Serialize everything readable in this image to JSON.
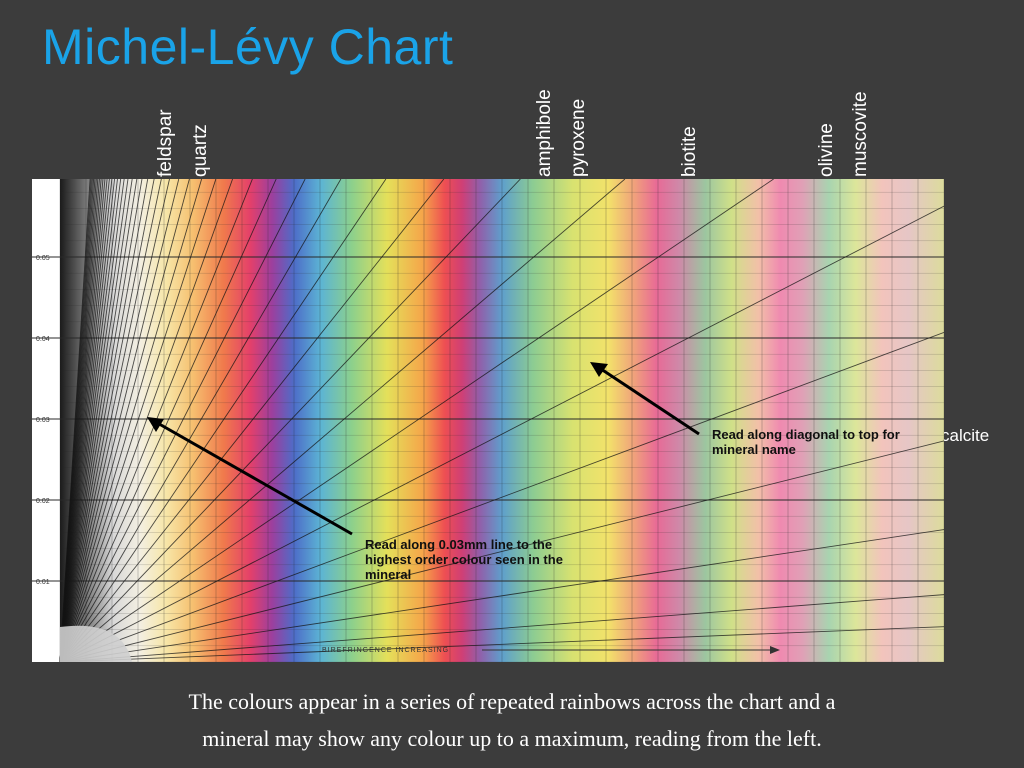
{
  "slide": {
    "title": "Michel-Lévy Chart",
    "caption_line1": "The colours appear in a series of repeated rainbows across the chart and a",
    "caption_line2": "mineral may show any colour up to a maximum, reading from the left."
  },
  "minerals": [
    "feldspar",
    "quartz",
    "amphibole",
    "pyroxene",
    "biotite",
    "olivine",
    "muscovite",
    "calcite"
  ],
  "chart": {
    "y_ticks": [
      "0.05",
      "0.04",
      "0.03",
      "0.02",
      "0.01"
    ],
    "bottom_label": "BIREFRINGENCE   INCREASING",
    "annotation_diagonal": "Read along diagonal to top for mineral name",
    "annotation_thickness": "Read along 0.03mm line to the highest order colour seen in the mineral"
  },
  "colors": {
    "title": "#1aa3e8",
    "background": "#3c3c3c",
    "text": "#ffffff"
  }
}
